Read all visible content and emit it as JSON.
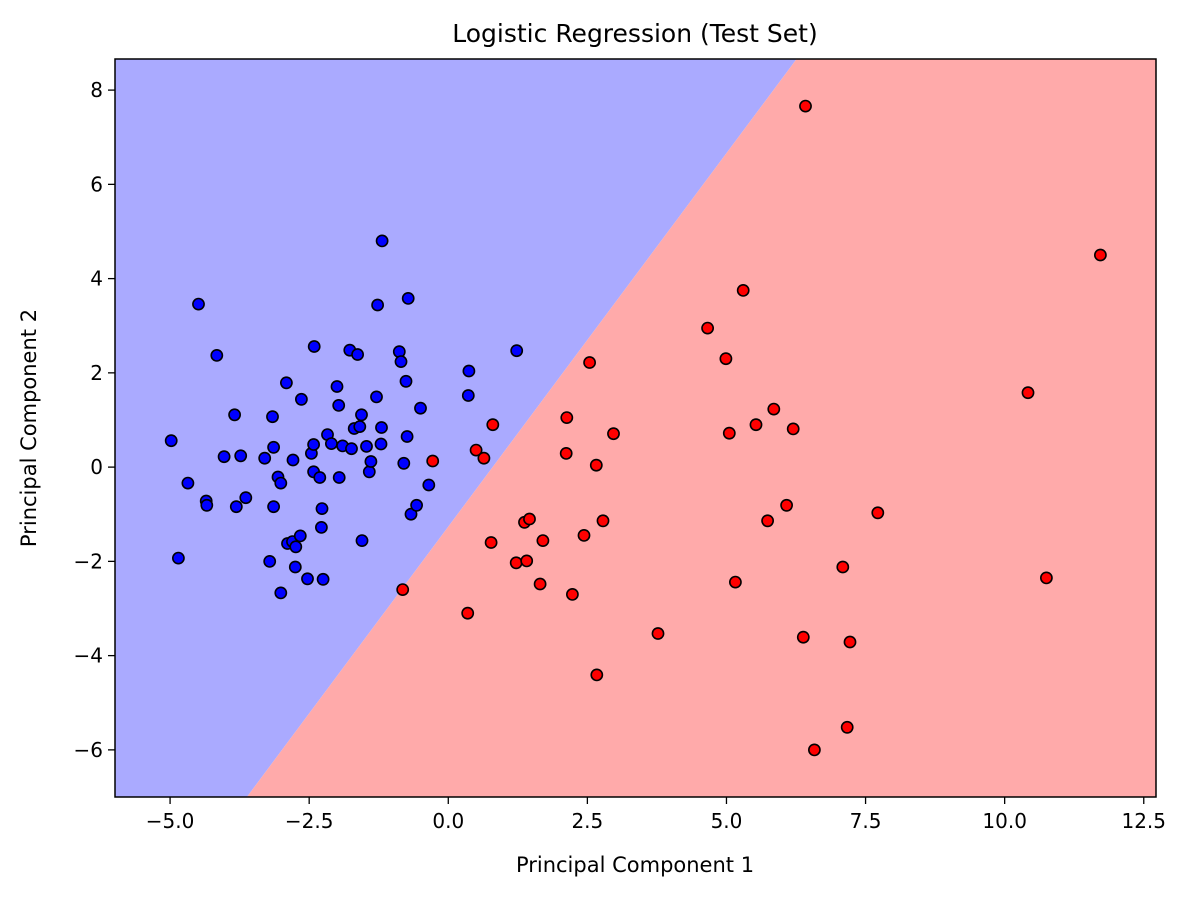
{
  "chart_data": {
    "type": "scatter",
    "title": "Logistic Regression (Test Set)",
    "xlabel": "Principal Component 1",
    "ylabel": "Principal Component 2",
    "xlim": [
      -5.99,
      12.72
    ],
    "ylim": [
      -7.0,
      8.66
    ],
    "xticks": [
      -5.0,
      -2.5,
      0.0,
      2.5,
      5.0,
      7.5,
      10.0,
      12.5
    ],
    "xtick_labels": [
      "−5.0",
      "−2.5",
      "0.0",
      "2.5",
      "5.0",
      "7.5",
      "10.0",
      "12.5"
    ],
    "yticks": [
      -6,
      -4,
      -2,
      0,
      2,
      4,
      6,
      8
    ],
    "ytick_labels": [
      "−6",
      "−4",
      "−2",
      "0",
      "2",
      "4",
      "6",
      "8"
    ],
    "grid": false,
    "decision_regions": [
      {
        "class": "blue",
        "color": "#aaaaff",
        "polygon": [
          [
            -5.99,
            -7.0
          ],
          [
            -3.62,
            -7.0
          ],
          [
            6.26,
            8.66
          ],
          [
            -5.99,
            8.66
          ]
        ]
      },
      {
        "class": "red",
        "color": "#ffaaaa",
        "polygon": [
          [
            -3.62,
            -7.0
          ],
          [
            12.72,
            -7.0
          ],
          [
            12.72,
            8.66
          ],
          [
            6.26,
            8.66
          ]
        ]
      }
    ],
    "series": [
      {
        "color": "#0000ff",
        "points": [
          [
            -4.98,
            0.56
          ],
          [
            -4.85,
            -1.93
          ],
          [
            -4.68,
            -0.34
          ],
          [
            -4.49,
            3.46
          ],
          [
            -4.35,
            -0.72
          ],
          [
            -4.34,
            -0.81
          ],
          [
            -4.16,
            2.37
          ],
          [
            -4.03,
            0.22
          ],
          [
            -3.84,
            1.11
          ],
          [
            -3.81,
            -0.84
          ],
          [
            -3.73,
            0.24
          ],
          [
            -3.64,
            -0.65
          ],
          [
            -3.3,
            0.19
          ],
          [
            -3.21,
            -2.0
          ],
          [
            -3.16,
            1.07
          ],
          [
            -3.14,
            -0.84
          ],
          [
            -3.14,
            0.42
          ],
          [
            -3.06,
            -0.21
          ],
          [
            -3.01,
            -0.34
          ],
          [
            -3.01,
            -2.67
          ],
          [
            -2.91,
            1.79
          ],
          [
            -2.89,
            -1.62
          ],
          [
            -2.8,
            -1.58
          ],
          [
            -2.79,
            0.15
          ],
          [
            -2.75,
            -2.12
          ],
          [
            -2.74,
            -1.69
          ],
          [
            -2.66,
            -1.46
          ],
          [
            -2.64,
            1.44
          ],
          [
            -2.53,
            -2.37
          ],
          [
            -2.46,
            0.29
          ],
          [
            -2.42,
            0.48
          ],
          [
            -2.42,
            -0.1
          ],
          [
            -2.41,
            2.56
          ],
          [
            -2.31,
            -0.22
          ],
          [
            -2.28,
            -1.28
          ],
          [
            -2.27,
            -0.88
          ],
          [
            -2.25,
            -2.38
          ],
          [
            -2.17,
            0.69
          ],
          [
            -2.1,
            0.5
          ],
          [
            -2.0,
            1.71
          ],
          [
            -1.97,
            1.31
          ],
          [
            -1.96,
            -0.22
          ],
          [
            -1.9,
            0.45
          ],
          [
            -1.77,
            2.48
          ],
          [
            -1.74,
            0.39
          ],
          [
            -1.69,
            0.82
          ],
          [
            -1.63,
            2.39
          ],
          [
            -1.59,
            0.86
          ],
          [
            -1.56,
            1.11
          ],
          [
            -1.55,
            -1.56
          ],
          [
            -1.47,
            0.44
          ],
          [
            -1.42,
            -0.1
          ],
          [
            -1.39,
            0.12
          ],
          [
            -1.29,
            1.49
          ],
          [
            -1.27,
            3.44
          ],
          [
            -1.21,
            0.49
          ],
          [
            -1.2,
            0.84
          ],
          [
            -1.19,
            4.8
          ],
          [
            -0.88,
            2.45
          ],
          [
            -0.85,
            2.24
          ],
          [
            -0.8,
            0.08
          ],
          [
            -0.76,
            1.82
          ],
          [
            -0.74,
            0.65
          ],
          [
            -0.72,
            3.58
          ],
          [
            -0.67,
            -1.0
          ],
          [
            -0.57,
            -0.81
          ],
          [
            -0.5,
            1.25
          ],
          [
            -0.35,
            -0.38
          ],
          [
            0.37,
            2.04
          ],
          [
            0.36,
            1.52
          ],
          [
            1.23,
            2.47
          ]
        ]
      },
      {
        "color": "#ff0000",
        "points": [
          [
            -0.82,
            -2.6
          ],
          [
            -0.28,
            0.13
          ],
          [
            0.35,
            -3.1
          ],
          [
            0.5,
            0.36
          ],
          [
            0.64,
            0.19
          ],
          [
            0.77,
            -1.6
          ],
          [
            0.8,
            0.9
          ],
          [
            1.22,
            -2.03
          ],
          [
            1.37,
            -1.17
          ],
          [
            1.41,
            -1.99
          ],
          [
            1.46,
            -1.1
          ],
          [
            1.65,
            -2.48
          ],
          [
            1.7,
            -1.56
          ],
          [
            2.12,
            0.29
          ],
          [
            2.13,
            1.05
          ],
          [
            2.23,
            -2.7
          ],
          [
            2.44,
            -1.45
          ],
          [
            2.54,
            2.22
          ],
          [
            2.66,
            0.04
          ],
          [
            2.67,
            -4.41
          ],
          [
            2.78,
            -1.14
          ],
          [
            2.97,
            0.71
          ],
          [
            3.77,
            -3.53
          ],
          [
            4.66,
            2.95
          ],
          [
            4.99,
            2.3
          ],
          [
            5.05,
            0.72
          ],
          [
            5.16,
            -2.44
          ],
          [
            5.3,
            3.75
          ],
          [
            5.53,
            0.9
          ],
          [
            5.74,
            -1.14
          ],
          [
            5.85,
            1.23
          ],
          [
            6.08,
            -0.81
          ],
          [
            6.2,
            0.81
          ],
          [
            6.38,
            -3.61
          ],
          [
            6.42,
            7.66
          ],
          [
            6.58,
            -6.0
          ],
          [
            7.09,
            -2.12
          ],
          [
            7.17,
            -5.52
          ],
          [
            7.22,
            -3.71
          ],
          [
            7.72,
            -0.97
          ],
          [
            10.42,
            1.58
          ],
          [
            10.75,
            -2.35
          ],
          [
            11.72,
            4.5
          ]
        ]
      }
    ]
  }
}
